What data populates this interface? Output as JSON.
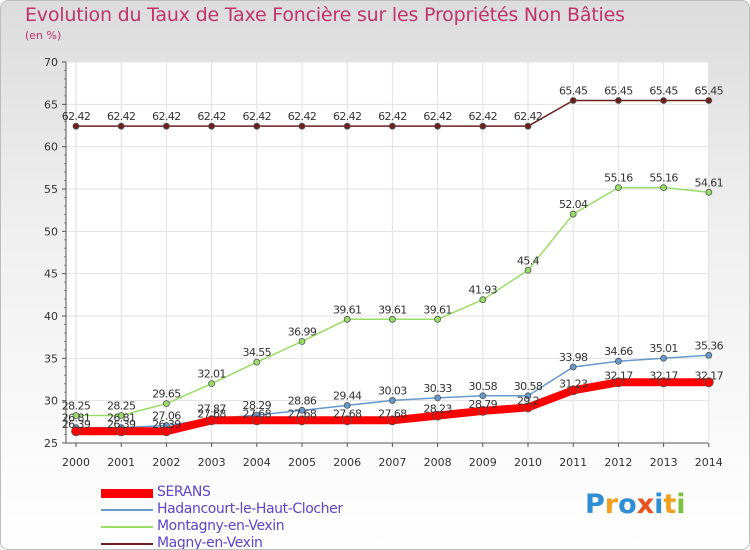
{
  "chart_data": {
    "type": "line",
    "title": "Evolution du Taux de Taxe Foncière sur les Propriétés Non Bâties",
    "ylabel": "(en %)",
    "xlabel": "",
    "x": [
      "2000",
      "2001",
      "2002",
      "2003",
      "2004",
      "2005",
      "2006",
      "2007",
      "2008",
      "2009",
      "2010",
      "2011",
      "2012",
      "2013",
      "2014"
    ],
    "ylim": [
      25,
      70
    ],
    "yticks": [
      25,
      30,
      35,
      40,
      45,
      50,
      55,
      60,
      65,
      70
    ],
    "grid": true,
    "legend_position": "bottom-left",
    "series": [
      {
        "name": "SERANS",
        "color": "#ff0000",
        "values": [
          26.39,
          26.39,
          26.39,
          27.68,
          27.68,
          27.68,
          27.68,
          27.68,
          28.23,
          28.79,
          29.2,
          31.23,
          32.17,
          32.17,
          32.17
        ],
        "labels": [
          "26.39",
          "26.39",
          "26.39",
          "27.68",
          "27.68",
          "27.68",
          "27.68",
          "27.68",
          "28.23",
          "28.79",
          "29.2",
          "31.23",
          "32.17",
          "32.17",
          "32.17"
        ]
      },
      {
        "name": "Hadancourt-le-Haut-Clocher",
        "color": "#6699cc",
        "values": [
          26.81,
          26.81,
          27.06,
          27.87,
          28.29,
          28.86,
          29.44,
          30.03,
          30.33,
          30.58,
          30.58,
          33.98,
          34.66,
          35.01,
          35.36
        ],
        "labels": [
          "26.81",
          "26.81",
          "27.06",
          "27.87",
          "28.29",
          "28.86",
          "29.44",
          "30.03",
          "30.33",
          "30.58",
          "30.58",
          "33.98",
          "34.66",
          "35.01",
          "35.36"
        ]
      },
      {
        "name": "Montagny-en-Vexin",
        "color": "#99dd66",
        "values": [
          28.25,
          28.25,
          29.65,
          32.01,
          34.55,
          36.99,
          39.61,
          39.61,
          39.61,
          41.93,
          45.4,
          52.04,
          55.16,
          55.16,
          54.61
        ],
        "labels": [
          "28.25",
          "28.25",
          "29.65",
          "32.01",
          "34.55",
          "36.99",
          "39.61",
          "39.61",
          "39.61",
          "41.93",
          "45.4",
          "52.04",
          "55.16",
          "55.16",
          "54.61"
        ]
      },
      {
        "name": "Magny-en-Vexin",
        "color": "#6b1f1f",
        "values": [
          62.42,
          62.42,
          62.42,
          62.42,
          62.42,
          62.42,
          62.42,
          62.42,
          62.42,
          62.42,
          62.42,
          65.45,
          65.45,
          65.45,
          65.45
        ],
        "labels": [
          "62.42",
          "62.42",
          "62.42",
          "62.42",
          "62.42",
          "62.42",
          "62.42",
          "62.42",
          "62.42",
          "62.42",
          "62.42",
          "65.45",
          "65.45",
          "65.45",
          "65.45"
        ]
      }
    ]
  },
  "brand": {
    "text": "Proxiti",
    "letter_colors": [
      "#2f8fd6",
      "#f0a01e",
      "#2f8fd6",
      "#e8501e",
      "#2f8fd6",
      "#f0a01e",
      "#7cc040"
    ]
  }
}
